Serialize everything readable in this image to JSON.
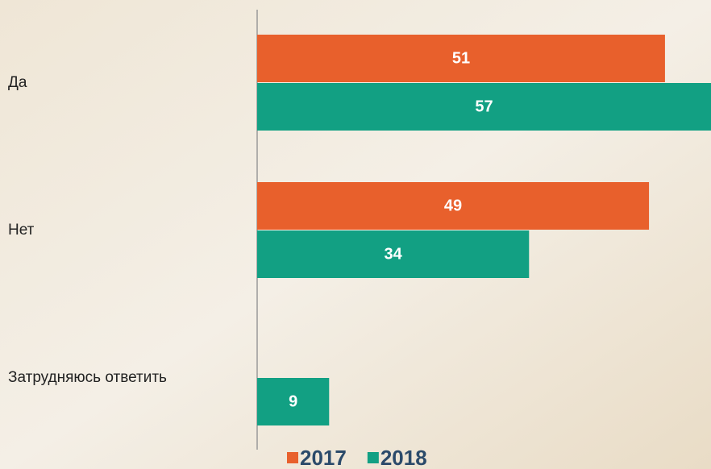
{
  "chart_data": {
    "type": "bar",
    "orientation": "horizontal",
    "categories": [
      "Да",
      "Нет",
      "Затрудняюсь ответить"
    ],
    "series": [
      {
        "name": "2017",
        "color": "#e8602c",
        "values": [
          51,
          49,
          null
        ]
      },
      {
        "name": "2018",
        "color": "#12a083",
        "values": [
          57,
          34,
          9
        ]
      }
    ]
  }
}
